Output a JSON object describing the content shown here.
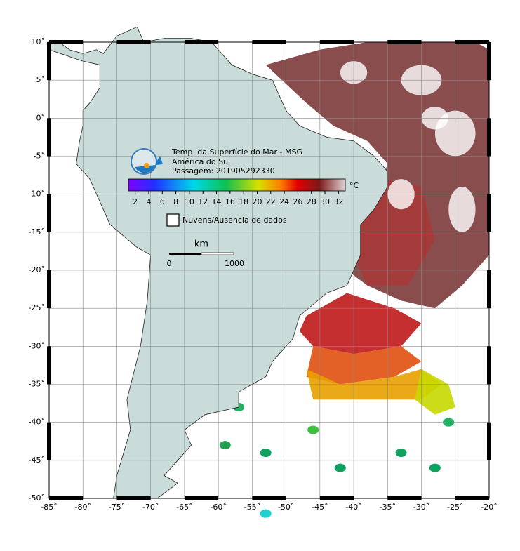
{
  "map": {
    "title": "Temp. da Superfície do Mar - MSG",
    "region": "América do Sul",
    "pass": "Passagem: 201905292330",
    "colorbar": {
      "unit": "°C",
      "clim": [
        1,
        33
      ],
      "ticks": [
        2,
        4,
        6,
        8,
        10,
        12,
        14,
        16,
        18,
        20,
        22,
        24,
        26,
        28,
        30,
        32
      ]
    },
    "legend": "Nuvens/Ausencia de dados",
    "scale": {
      "unit": "km",
      "start": "0",
      "end": "1000"
    },
    "lonlim": [
      -85,
      -20
    ],
    "latlim": [
      -50,
      10
    ],
    "lon_ticks": [
      {
        "value": -85,
        "label": "-85˚"
      },
      {
        "value": -80,
        "label": "-80˚"
      },
      {
        "value": -75,
        "label": "-75˚"
      },
      {
        "value": -70,
        "label": "-70˚"
      },
      {
        "value": -65,
        "label": "-65˚"
      },
      {
        "value": -60,
        "label": "-60˚"
      },
      {
        "value": -55,
        "label": "-55˚"
      },
      {
        "value": -50,
        "label": "-50˚"
      },
      {
        "value": -45,
        "label": "-45˚"
      },
      {
        "value": -40,
        "label": "-40˚"
      },
      {
        "value": -35,
        "label": "-35˚"
      },
      {
        "value": -30,
        "label": "-30˚"
      },
      {
        "value": -25,
        "label": "-25˚"
      },
      {
        "value": -20,
        "label": "-20˚"
      }
    ],
    "lat_ticks": [
      {
        "value": 10,
        "label": "10˚"
      },
      {
        "value": 5,
        "label": "5˚"
      },
      {
        "value": 0,
        "label": "0˚"
      },
      {
        "value": -5,
        "label": "-5˚"
      },
      {
        "value": -10,
        "label": "-10˚"
      },
      {
        "value": -15,
        "label": "-15˚"
      },
      {
        "value": -20,
        "label": "-20˚"
      },
      {
        "value": -25,
        "label": "-25˚"
      },
      {
        "value": -30,
        "label": "-30˚"
      },
      {
        "value": -35,
        "label": "-35˚"
      },
      {
        "value": -40,
        "label": "-40˚"
      },
      {
        "value": -45,
        "label": "-45˚"
      },
      {
        "value": -50,
        "label": "-50˚"
      }
    ]
  }
}
